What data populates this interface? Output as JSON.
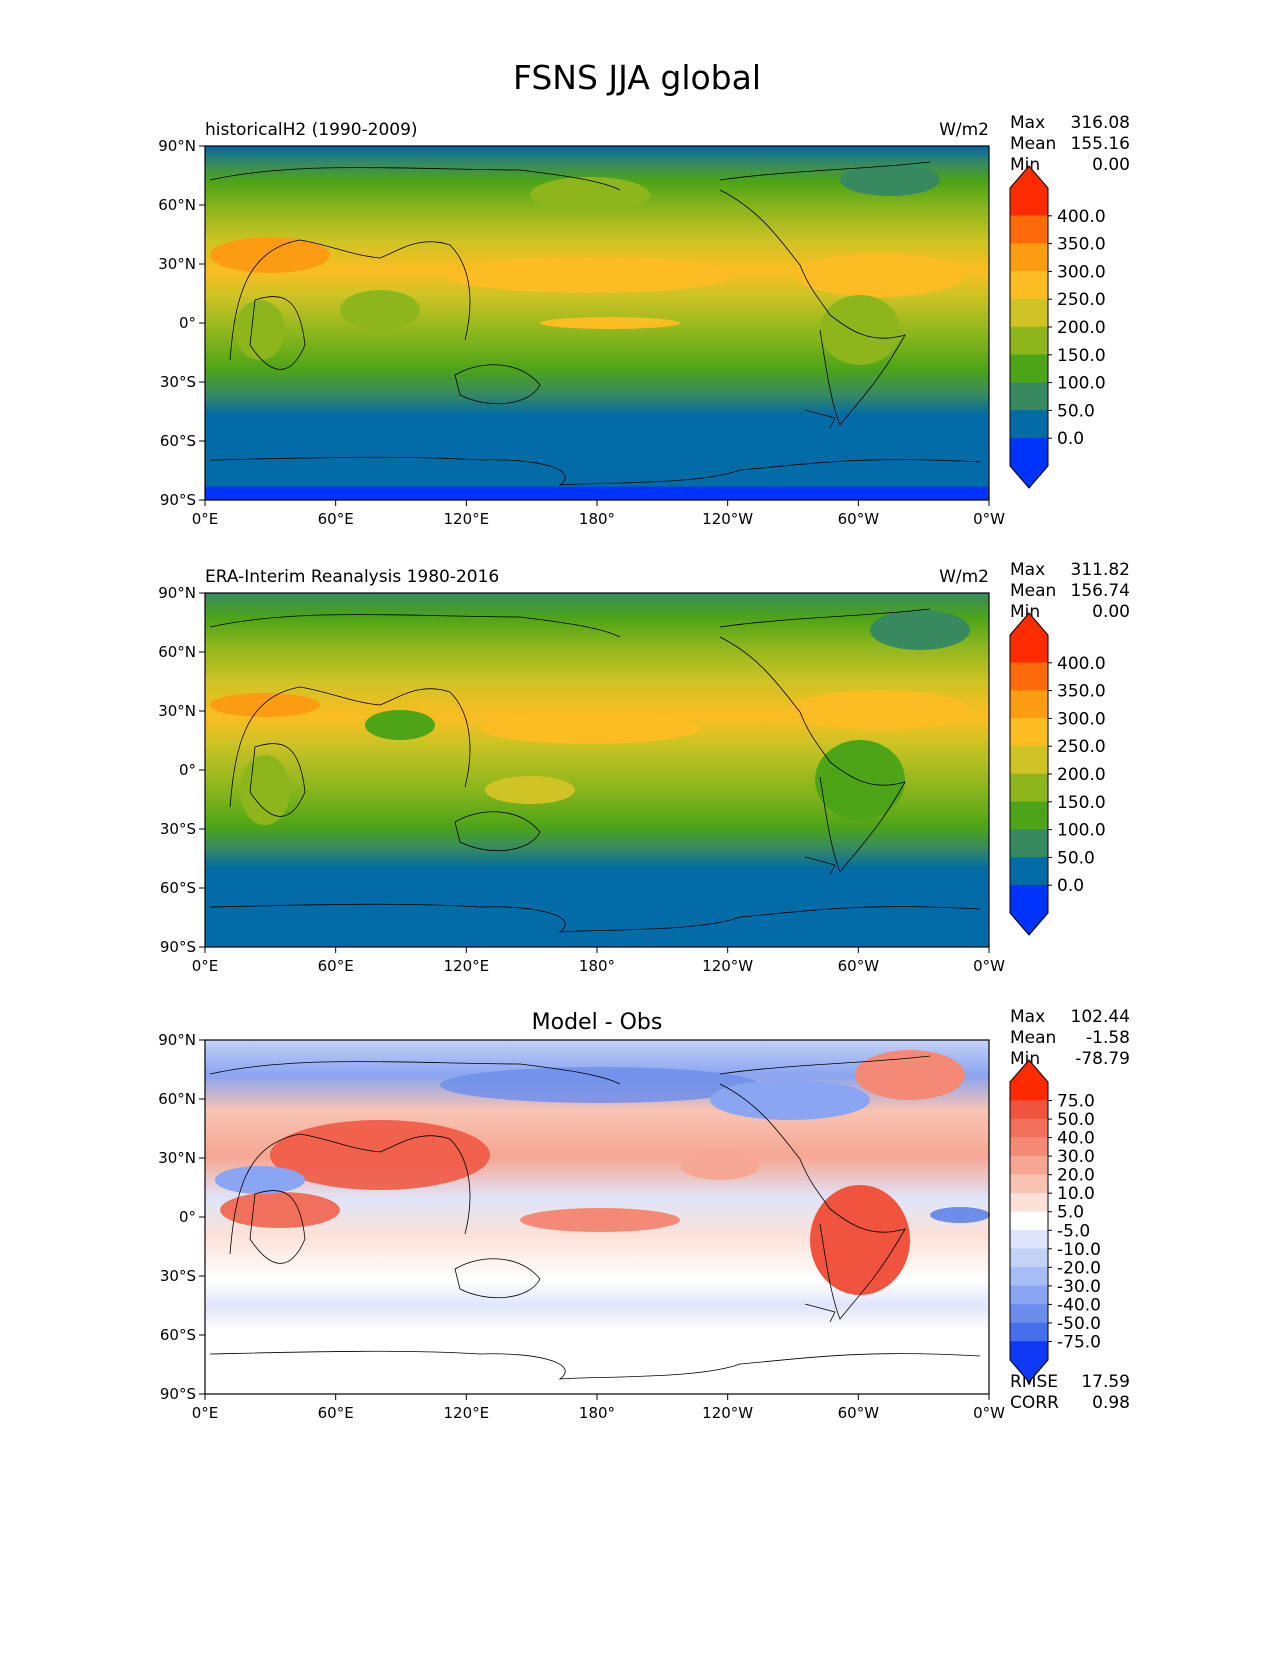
{
  "title": "FSNS JJA global",
  "lat_ticks": [
    "90°N",
    "60°N",
    "30°N",
    "0°",
    "30°S",
    "60°S",
    "90°S"
  ],
  "lon_ticks": [
    "0°E",
    "60°E",
    "120°E",
    "180°",
    "120°W",
    "60°W",
    "0°W"
  ],
  "panels": [
    {
      "left_label": "historicalH2 (1990-2009)",
      "center_label": "",
      "units": "W/m2",
      "stats": [
        [
          "Max",
          "316.08"
        ],
        [
          "Mean",
          "155.16"
        ],
        [
          "Min",
          "0.00"
        ]
      ],
      "bottom_stats": [],
      "colorbar_labels": [
        "400.0",
        "350.0",
        "300.0",
        "250.0",
        "200.0",
        "150.0",
        "100.0",
        "50.0",
        "0.0"
      ],
      "colorbar_colors": [
        "#fd2b00",
        "#fd6a0a",
        "#fb9c13",
        "#fbbd21",
        "#cfc325",
        "#8db61d",
        "#4ea417",
        "#378a60",
        "#036ba6",
        "#0033f8"
      ]
    },
    {
      "left_label": "ERA-Interim Reanalysis 1980-2016",
      "center_label": "",
      "units": "W/m2",
      "stats": [
        [
          "Max",
          "311.82"
        ],
        [
          "Mean",
          "156.74"
        ],
        [
          "Min",
          "0.00"
        ]
      ],
      "bottom_stats": [],
      "colorbar_labels": [
        "400.0",
        "350.0",
        "300.0",
        "250.0",
        "200.0",
        "150.0",
        "100.0",
        "50.0",
        "0.0"
      ],
      "colorbar_colors": [
        "#fd2b00",
        "#fd6a0a",
        "#fb9c13",
        "#fbbd21",
        "#cfc325",
        "#8db61d",
        "#4ea417",
        "#378a60",
        "#036ba6",
        "#0033f8"
      ]
    },
    {
      "left_label": "",
      "center_label": "Model - Obs",
      "units": "",
      "stats": [
        [
          "Max",
          "102.44"
        ],
        [
          "Mean",
          "-1.58"
        ],
        [
          "Min",
          "-78.79"
        ]
      ],
      "bottom_stats": [
        [
          "RMSE",
          "17.59"
        ],
        [
          "CORR",
          "0.98"
        ]
      ],
      "colorbar_labels": [
        "75.0",
        "50.0",
        "40.0",
        "30.0",
        "20.0",
        "10.0",
        "5.0",
        "-5.0",
        "-10.0",
        "-20.0",
        "-30.0",
        "-40.0",
        "-50.0",
        "-75.0"
      ],
      "colorbar_colors": [
        "#ff2a00",
        "#f0543e",
        "#f1705b",
        "#f48a75",
        "#f6a793",
        "#f8c3b3",
        "#fbe1d7",
        "#ffffff",
        "#dfe6fb",
        "#c4d2f8",
        "#a7bdf5",
        "#8aa5f1",
        "#6d8deb",
        "#4670eb",
        "#1039f5"
      ]
    }
  ]
}
